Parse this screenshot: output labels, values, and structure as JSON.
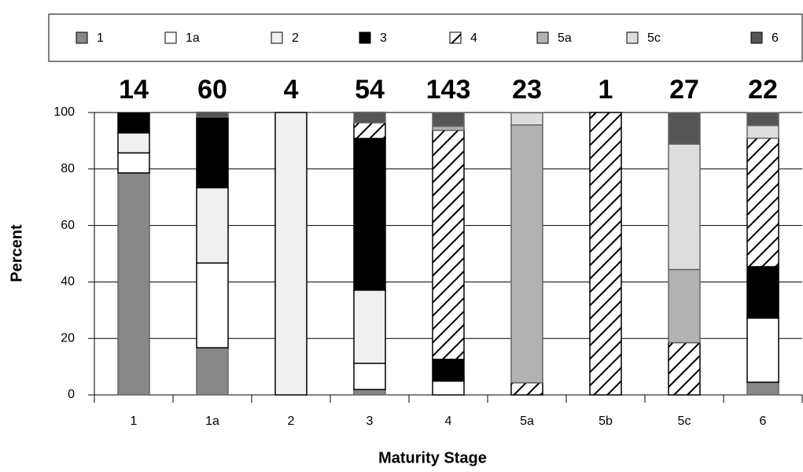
{
  "chart_data": {
    "type": "stacked_bar",
    "x_label": "Maturity Stage",
    "y_label": "Percent",
    "categories": [
      "1",
      "1a",
      "2",
      "3",
      "4",
      "5a",
      "5b",
      "5c",
      "6"
    ],
    "annotations": [
      "14",
      "60",
      "4",
      "54",
      "143",
      "23",
      "1",
      "27",
      "22"
    ],
    "series": [
      {
        "name": "1",
        "color": "#888888",
        "values": [
          78.6,
          16.7,
          0,
          1.9,
          0,
          0,
          0,
          0,
          4.5
        ]
      },
      {
        "name": "1a",
        "color": "#ffffff",
        "values": [
          7.1,
          30,
          0,
          9.3,
          4.9,
          0,
          0,
          0,
          22.7
        ]
      },
      {
        "name": "2",
        "color": "#f0f0f0",
        "values": [
          7.1,
          26.7,
          100,
          25.9,
          0,
          0,
          0,
          0,
          0
        ]
      },
      {
        "name": "3",
        "color": "#000000",
        "values": [
          7.1,
          25,
          0,
          53.7,
          7.7,
          0,
          0,
          0,
          18.2
        ]
      },
      {
        "name": "4",
        "color": "#ffffff",
        "pattern": "diagonal-hatch",
        "values": [
          0,
          0,
          0,
          5.6,
          81.1,
          4.3,
          100,
          18.5,
          45.5
        ]
      },
      {
        "name": "5a",
        "color": "#b2b2b2",
        "values": [
          0,
          0,
          0,
          0,
          1.4,
          91.3,
          0,
          25.9,
          0
        ]
      },
      {
        "name": "5c",
        "color": "#dddddd",
        "values": [
          0,
          0,
          0,
          0,
          0,
          4.3,
          0,
          44.4,
          4.5
        ]
      },
      {
        "name": "6",
        "color": "#555555",
        "values": [
          0,
          1.7,
          0,
          3.7,
          4.9,
          0,
          0,
          11.1,
          4.5
        ]
      }
    ],
    "ylim": [
      0,
      100
    ],
    "yticks": [
      0,
      20,
      40,
      60,
      80,
      100
    ],
    "grid": true,
    "legend": "top"
  }
}
